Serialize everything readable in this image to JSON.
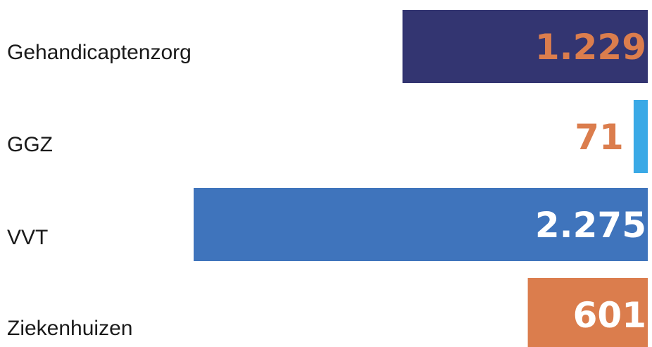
{
  "chart_data": {
    "type": "bar",
    "orientation": "horizontal",
    "bar_alignment": "right",
    "categories": [
      "Gehandicaptenzorg",
      "GGZ",
      "VVT",
      "Ziekenhuizen"
    ],
    "values": [
      1229,
      71,
      2275,
      601
    ],
    "value_labels": [
      "1.229",
      "71",
      "2.275",
      "601"
    ],
    "bar_colors": [
      "#333571",
      "#3aa9e6",
      "#3f74bc",
      "#db7d4d"
    ],
    "label_colors": [
      "#db7d4d",
      "#db7d4d",
      "#ffffff",
      "#ffffff"
    ],
    "title": "",
    "xlabel": "",
    "ylabel": "",
    "xlim": [
      0,
      2275
    ],
    "grid": false,
    "legend": "none"
  }
}
